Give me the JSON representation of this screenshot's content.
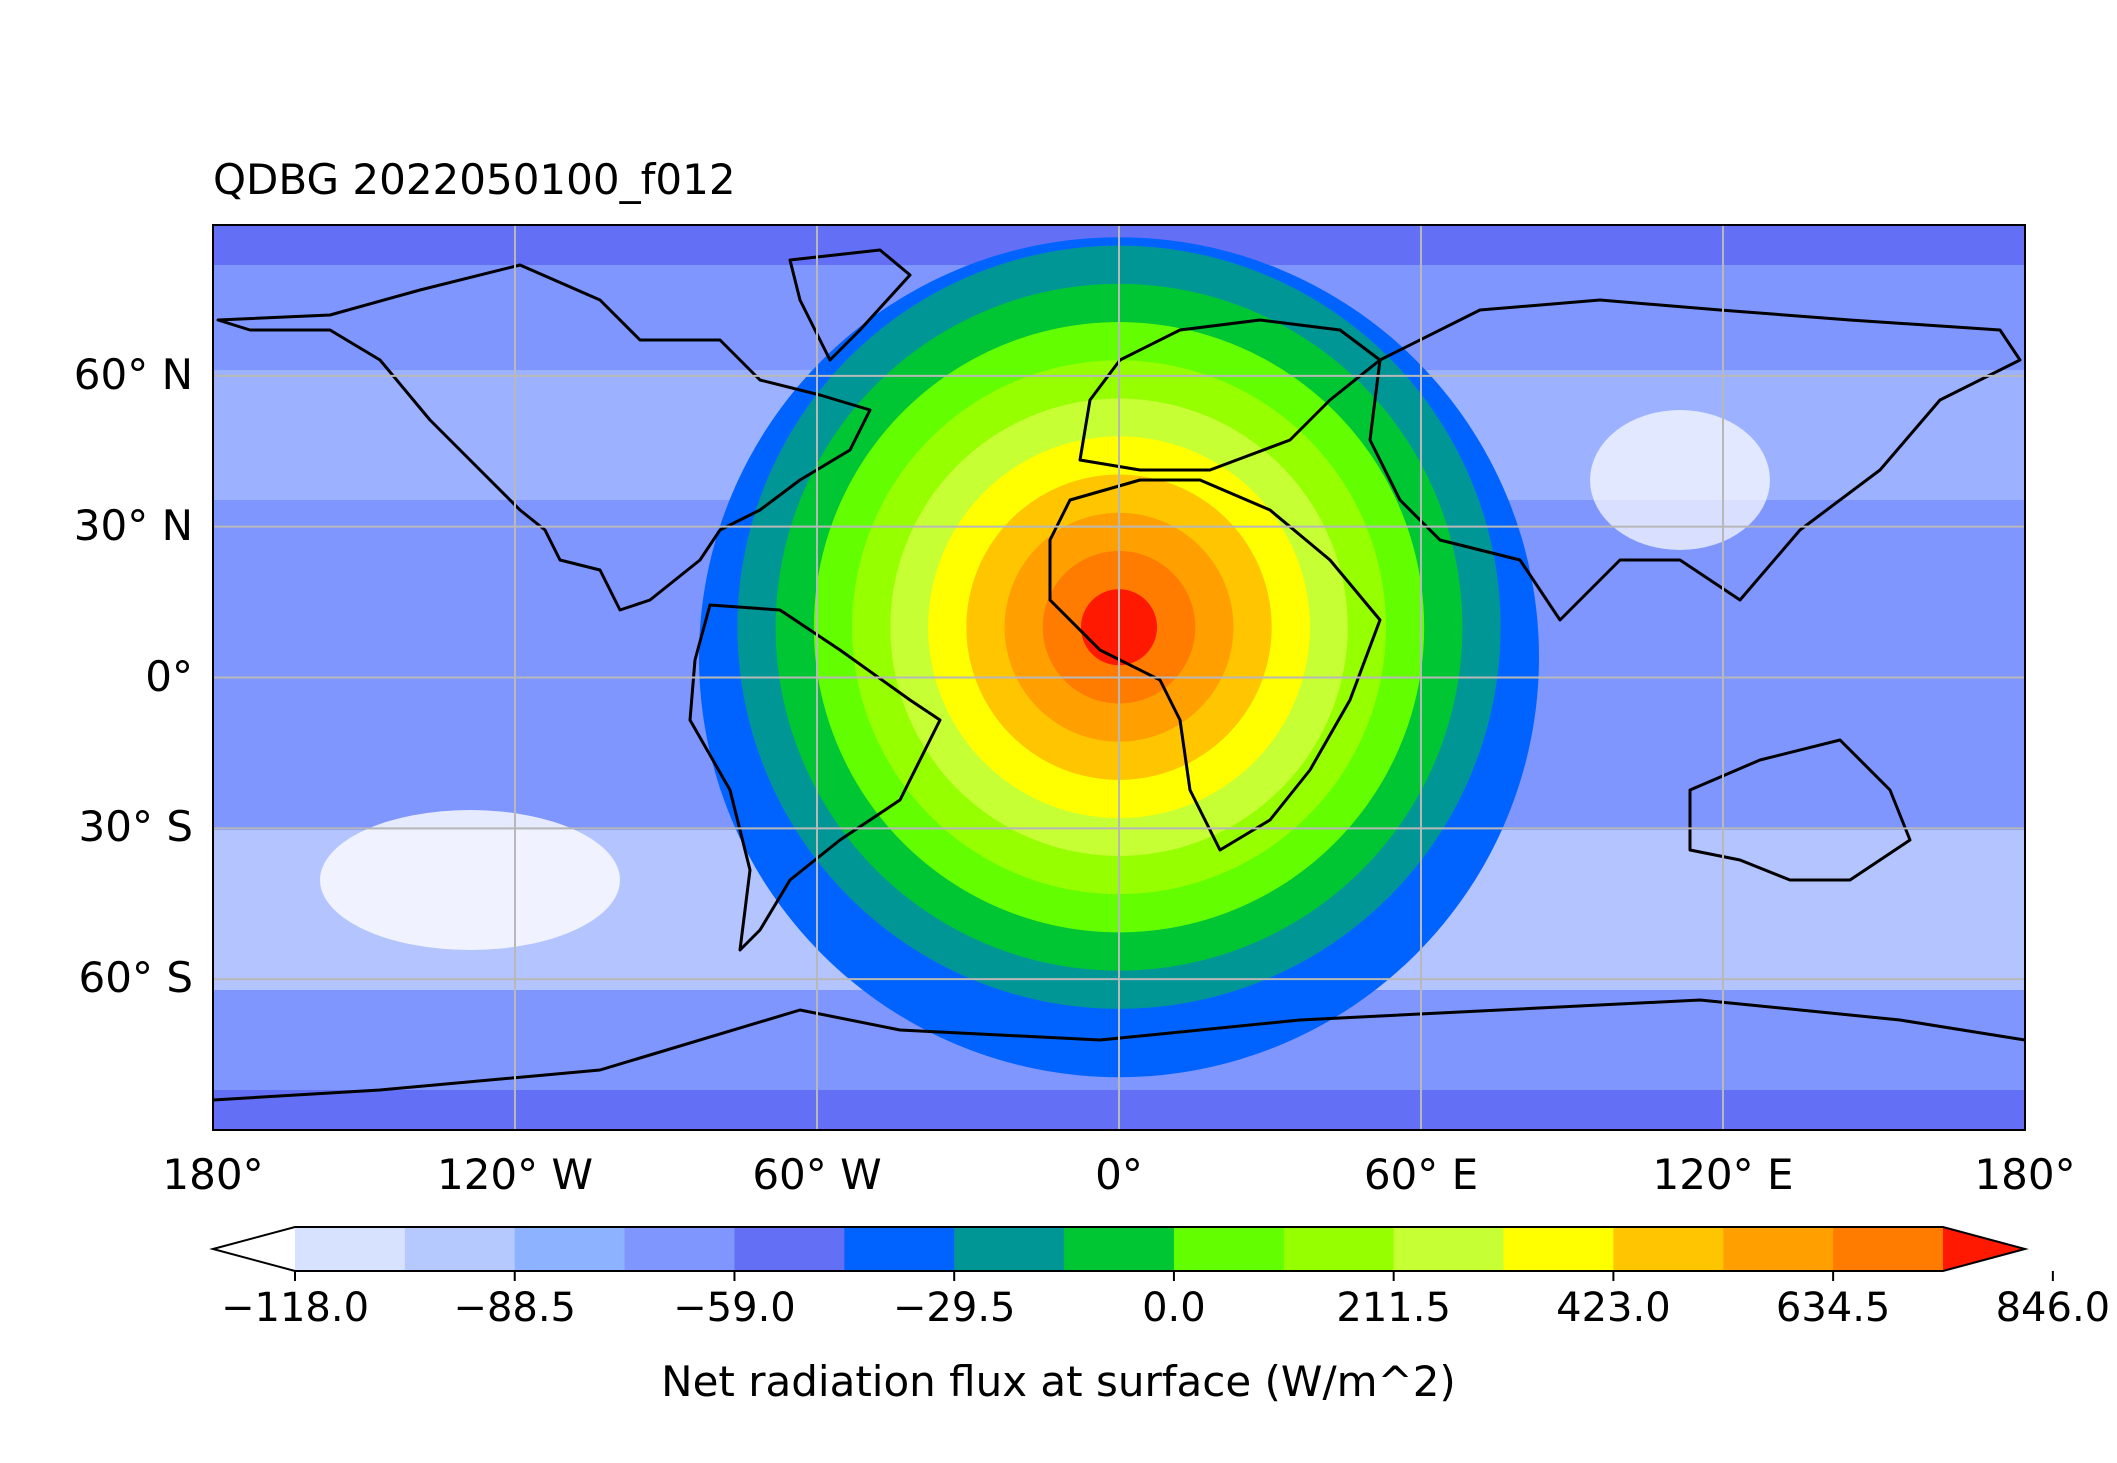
{
  "title": "QDBG 2022050100_f012",
  "map": {
    "projection": "plate-carree",
    "extent": {
      "lon": [
        -180,
        180
      ],
      "lat": [
        -90,
        90
      ]
    },
    "gridlines": true,
    "lat_labels": [
      "60° N",
      "30° N",
      "0°",
      "30° S",
      "60° S"
    ],
    "lat_values": [
      60,
      30,
      0,
      -30,
      -60
    ],
    "lon_labels": [
      "180°",
      "120° W",
      "60° W",
      "0°",
      "60° E",
      "120° E",
      "180°"
    ],
    "lon_values": [
      -180,
      -120,
      -60,
      0,
      60,
      120,
      180
    ],
    "field_peak": {
      "lon": 0,
      "lat": 10
    }
  },
  "colorbar": {
    "label": "Net radiation flux at surface (W/m^2)",
    "tick_labels": [
      "−118.0",
      "−88.5",
      "−59.0",
      "−29.5",
      "0.0",
      "211.5",
      "423.0",
      "634.5",
      "846.0"
    ],
    "levels": [
      -118.0,
      -103.25,
      -88.5,
      -73.75,
      -59.0,
      -44.25,
      -29.5,
      -14.75,
      0.0,
      105.75,
      211.5,
      317.25,
      423.0,
      528.75,
      634.5,
      740.25,
      846.0
    ],
    "colors": [
      "#ffffff",
      "#d6e2ff",
      "#b5c9ff",
      "#8db2ff",
      "#7f96ff",
      "#6370f6",
      "#0063ff",
      "#009696",
      "#00c634",
      "#63ff00",
      "#96ff00",
      "#c6ff33",
      "#ffff00",
      "#ffc600",
      "#ffa000",
      "#ff7c00",
      "#ff1900"
    ],
    "extend": "both"
  }
}
